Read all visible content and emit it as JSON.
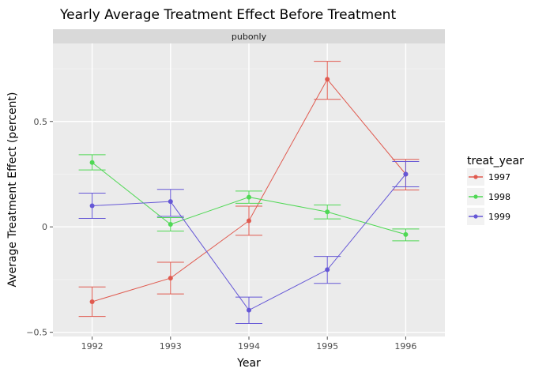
{
  "chart_data": {
    "type": "line",
    "title": "Yearly Average Treatment Effect Before Treatment",
    "facet_label": "pubonly",
    "xlabel": "Year",
    "ylabel": "Average Treatment Effect (percent)",
    "x": [
      "1992",
      "1993",
      "1994",
      "1995",
      "1996"
    ],
    "xlim": [
      1991.5,
      1996.5
    ],
    "ylim": [
      -0.52,
      0.87
    ],
    "yticks": [
      -0.5,
      0,
      0.5
    ],
    "ytick_labels": [
      "−0.5",
      "0",
      "0.5"
    ],
    "grid": true,
    "legend": {
      "title": "treat_year",
      "position": "right"
    },
    "series": [
      {
        "name": "1997",
        "color": "#e05a4f",
        "y": [
          -0.355,
          -0.243,
          0.029,
          0.7,
          0.25
        ],
        "ymin": [
          -0.425,
          -0.318,
          -0.04,
          0.605,
          0.175
        ],
        "ymax": [
          -0.285,
          -0.168,
          0.098,
          0.785,
          0.32
        ]
      },
      {
        "name": "1998",
        "color": "#4fd854",
        "y": [
          0.305,
          0.012,
          0.141,
          0.071,
          -0.036
        ],
        "ymin": [
          0.27,
          -0.02,
          0.112,
          0.038,
          -0.066
        ],
        "ymax": [
          0.342,
          0.044,
          0.17,
          0.104,
          -0.01
        ]
      },
      {
        "name": "1999",
        "color": "#6557d6",
        "y": [
          0.1,
          0.12,
          -0.395,
          -0.203,
          0.25
        ],
        "ymin": [
          0.04,
          0.05,
          -0.458,
          -0.268,
          0.19
        ],
        "ymax": [
          0.16,
          0.178,
          -0.333,
          -0.14,
          0.31
        ]
      }
    ]
  }
}
